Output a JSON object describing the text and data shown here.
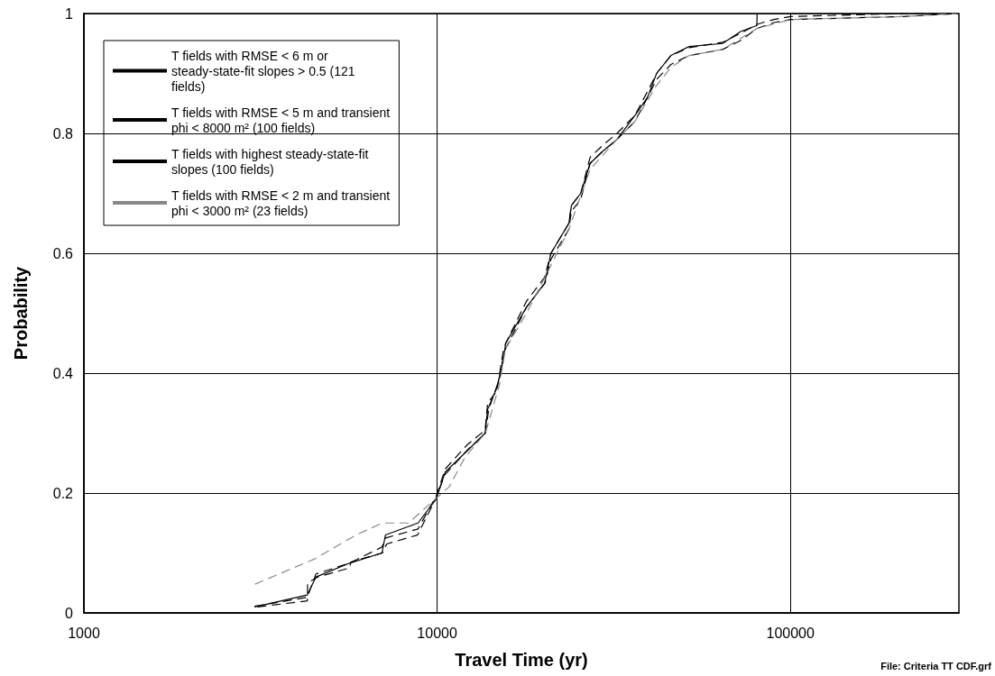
{
  "chart_data": {
    "type": "line",
    "xlabel": "Travel Time (yr)",
    "ylabel": "Probability",
    "log": "x",
    "xlim": [
      1000,
      300000
    ],
    "xticks": [
      1000,
      10000,
      100000
    ],
    "ylim": [
      0,
      1
    ],
    "yticks": [
      0,
      0.2,
      0.4,
      0.6,
      0.8,
      1
    ],
    "grid": true,
    "legend": "top left",
    "marker": "none",
    "annotations": [
      "File: Criteria TT CDF.grf"
    ],
    "series": [
      {
        "name": "T fields with RMSE < 6 m or steady-state-fit slopes > 0.5 (121 fields)",
        "color": "#000000",
        "line_style": "dashed",
        "x": [
          3100,
          4290,
          4300,
          4600,
          5650,
          5700,
          7000,
          7200,
          8800,
          9900,
          10500,
          12100,
          13700,
          14000,
          15000,
          15400,
          15600,
          17900,
          20200,
          21000,
          23600,
          24000,
          25500,
          27100,
          29400,
          32300,
          36300,
          39400,
          41800,
          45900,
          51700,
          64300,
          72300,
          80400,
          89900,
          100000,
          209000,
          297000
        ],
        "values": [
          0.01,
          0.02,
          0.05,
          0.06,
          0.075,
          0.085,
          0.1,
          0.115,
          0.13,
          0.19,
          0.23,
          0.27,
          0.3,
          0.34,
          0.39,
          0.43,
          0.44,
          0.51,
          0.55,
          0.59,
          0.64,
          0.67,
          0.69,
          0.75,
          0.77,
          0.79,
          0.82,
          0.86,
          0.89,
          0.915,
          0.93,
          0.94,
          0.955,
          0.975,
          0.985,
          0.99,
          0.995,
          1
        ]
      },
      {
        "name": "T fields with RMSE < 5 m and transient phi < 8000 m² (100 fields)",
        "color": "#000000",
        "line_style": "dashed",
        "x": [
          3040,
          4290,
          4540,
          5650,
          6980,
          7140,
          8830,
          9940,
          10540,
          12140,
          13670,
          13900,
          14750,
          15370,
          15640,
          17900,
          20150,
          21000,
          23600,
          24000,
          25500,
          27100,
          29400,
          32300,
          36300,
          39400,
          41800,
          45900,
          51700,
          64300,
          72300,
          80400,
          89900,
          100000,
          209000,
          297000
        ],
        "values": [
          0.011,
          0.026,
          0.065,
          0.083,
          0.11,
          0.125,
          0.14,
          0.195,
          0.24,
          0.28,
          0.305,
          0.35,
          0.37,
          0.435,
          0.45,
          0.52,
          0.56,
          0.6,
          0.65,
          0.68,
          0.7,
          0.76,
          0.78,
          0.8,
          0.83,
          0.87,
          0.9,
          0.93,
          0.943,
          0.952,
          0.967,
          0.982,
          0.99,
          0.995,
          1,
          1
        ]
      },
      {
        "name": "T fields with highest steady-state-fit slopes (100 fields)",
        "color": "#000000",
        "line_style": "solid",
        "x": [
          3040,
          4290,
          4540,
          5650,
          6980,
          7140,
          8830,
          9940,
          10540,
          12140,
          13670,
          13900,
          14750,
          15370,
          15640,
          17900,
          20150,
          21000,
          23600,
          24000,
          25500,
          27100,
          29400,
          32300,
          36300,
          39400,
          41800,
          45900,
          51700,
          64300,
          72300,
          80400,
          80500
        ],
        "values": [
          0.01,
          0.03,
          0.06,
          0.083,
          0.1,
          0.13,
          0.15,
          0.19,
          0.235,
          0.27,
          0.3,
          0.34,
          0.375,
          0.42,
          0.45,
          0.51,
          0.55,
          0.6,
          0.65,
          0.68,
          0.7,
          0.75,
          0.77,
          0.79,
          0.83,
          0.86,
          0.9,
          0.93,
          0.945,
          0.95,
          0.97,
          0.98,
          1
        ]
      },
      {
        "name": "T fields with RMSE < 2 m and transient phi < 3000 m² (23 fields)",
        "color": "#888888",
        "line_style": "dashed",
        "x": [
          3050,
          4500,
          5900,
          7000,
          8300,
          10800,
          12000,
          13700,
          15000,
          15600,
          17900,
          20200,
          23600,
          27100,
          32300,
          36300,
          41800,
          45900,
          51700,
          64300,
          80400,
          100000,
          209000,
          297000
        ],
        "values": [
          0.048,
          0.09,
          0.13,
          0.15,
          0.15,
          0.21,
          0.26,
          0.3,
          0.38,
          0.44,
          0.5,
          0.56,
          0.64,
          0.74,
          0.79,
          0.82,
          0.88,
          0.91,
          0.93,
          0.94,
          0.975,
          0.99,
          0.995,
          1
        ]
      }
    ]
  }
}
